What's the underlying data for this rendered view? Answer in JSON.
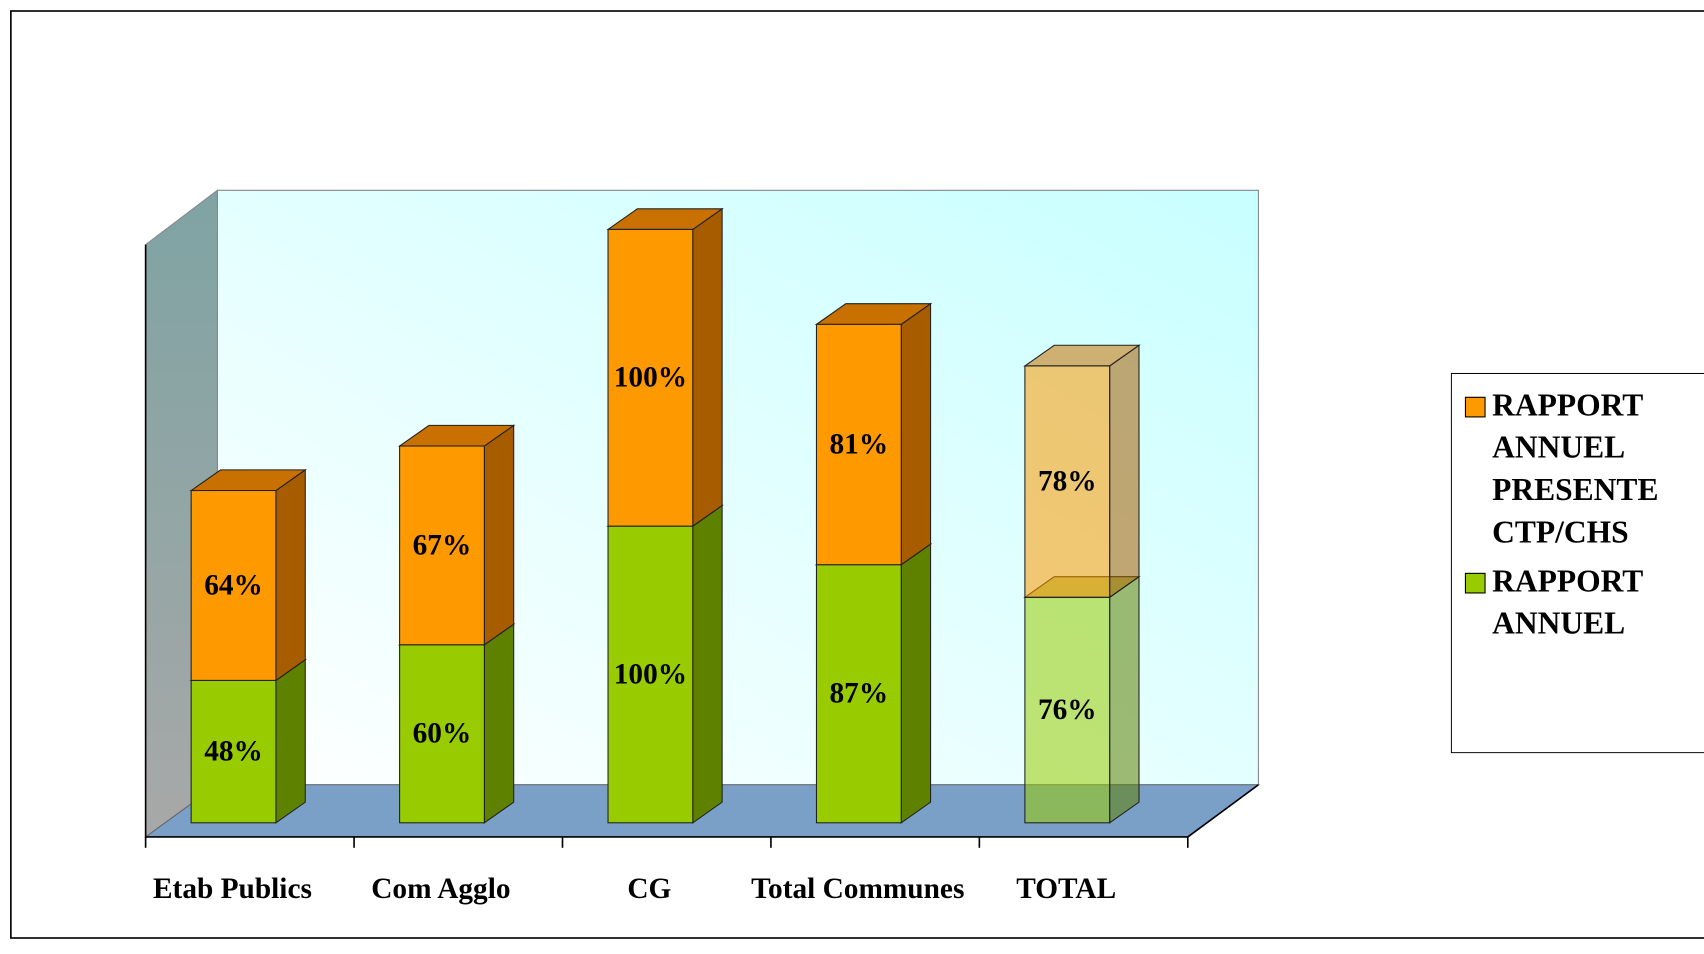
{
  "chart_data": {
    "type": "bar3d_stacked",
    "categories": [
      "Etab Publics",
      "Com Agglo",
      "CG",
      "Total Communes",
      "TOTAL"
    ],
    "series": [
      {
        "name": "RAPPORT ANNUEL",
        "color": "#99cc00",
        "side": "#5e8200",
        "top": "#7aa300",
        "values": [
          48,
          60,
          100,
          87,
          76
        ],
        "value_labels": [
          "48%",
          "60%",
          "100%",
          "87%",
          "76%"
        ]
      },
      {
        "name": "RAPPORT ANNUEL PRESENTE CTP/CHS",
        "color": "#ff9900",
        "side": "#a85c00",
        "top": "#c87000",
        "values": [
          64,
          67,
          100,
          81,
          78
        ],
        "value_labels": [
          "64%",
          "67%",
          "100%",
          "81%",
          "78%"
        ]
      }
    ],
    "legend": "right"
  }
}
